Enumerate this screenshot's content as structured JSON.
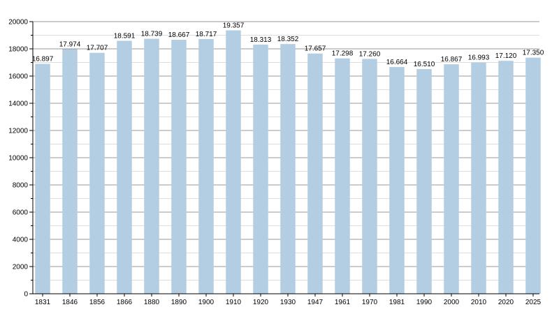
{
  "chart_data": {
    "type": "bar",
    "title": "",
    "xlabel": "",
    "ylabel": "",
    "categories": [
      "1831",
      "1846",
      "1856",
      "1866",
      "1880",
      "1890",
      "1900",
      "1910",
      "1920",
      "1930",
      "1947",
      "1961",
      "1970",
      "1981",
      "1990",
      "2000",
      "2010",
      "2020",
      "2025"
    ],
    "values": [
      16897,
      17974,
      17707,
      18591,
      18739,
      18667,
      18717,
      19357,
      18313,
      18352,
      17657,
      17298,
      17260,
      16664,
      16510,
      16867,
      16993,
      17120,
      17350
    ],
    "value_labels": [
      "16.897",
      "17.974",
      "17.707",
      "18.591",
      "18.739",
      "18.667",
      "18.717",
      "19.357",
      "18.313",
      "18.352",
      "17.657",
      "17.298",
      "17.260",
      "16.664",
      "16.510",
      "16.867",
      "16.993",
      "17.120",
      "17.350"
    ],
    "ylim": [
      0,
      20000
    ],
    "y_ticks": [
      0,
      2000,
      4000,
      6000,
      8000,
      10000,
      12000,
      14000,
      16000,
      18000,
      20000
    ],
    "y_tick_labels": [
      "0",
      "2000",
      "4000",
      "6000",
      "8000",
      "10000",
      "12000",
      "14000",
      "16000",
      "18000",
      "20000"
    ],
    "grid": true,
    "legend": "none",
    "colors": {
      "bar": "#b3cde3",
      "grid_major": "#999999",
      "grid_minor": "#dddddd",
      "axis": "#000000"
    }
  }
}
